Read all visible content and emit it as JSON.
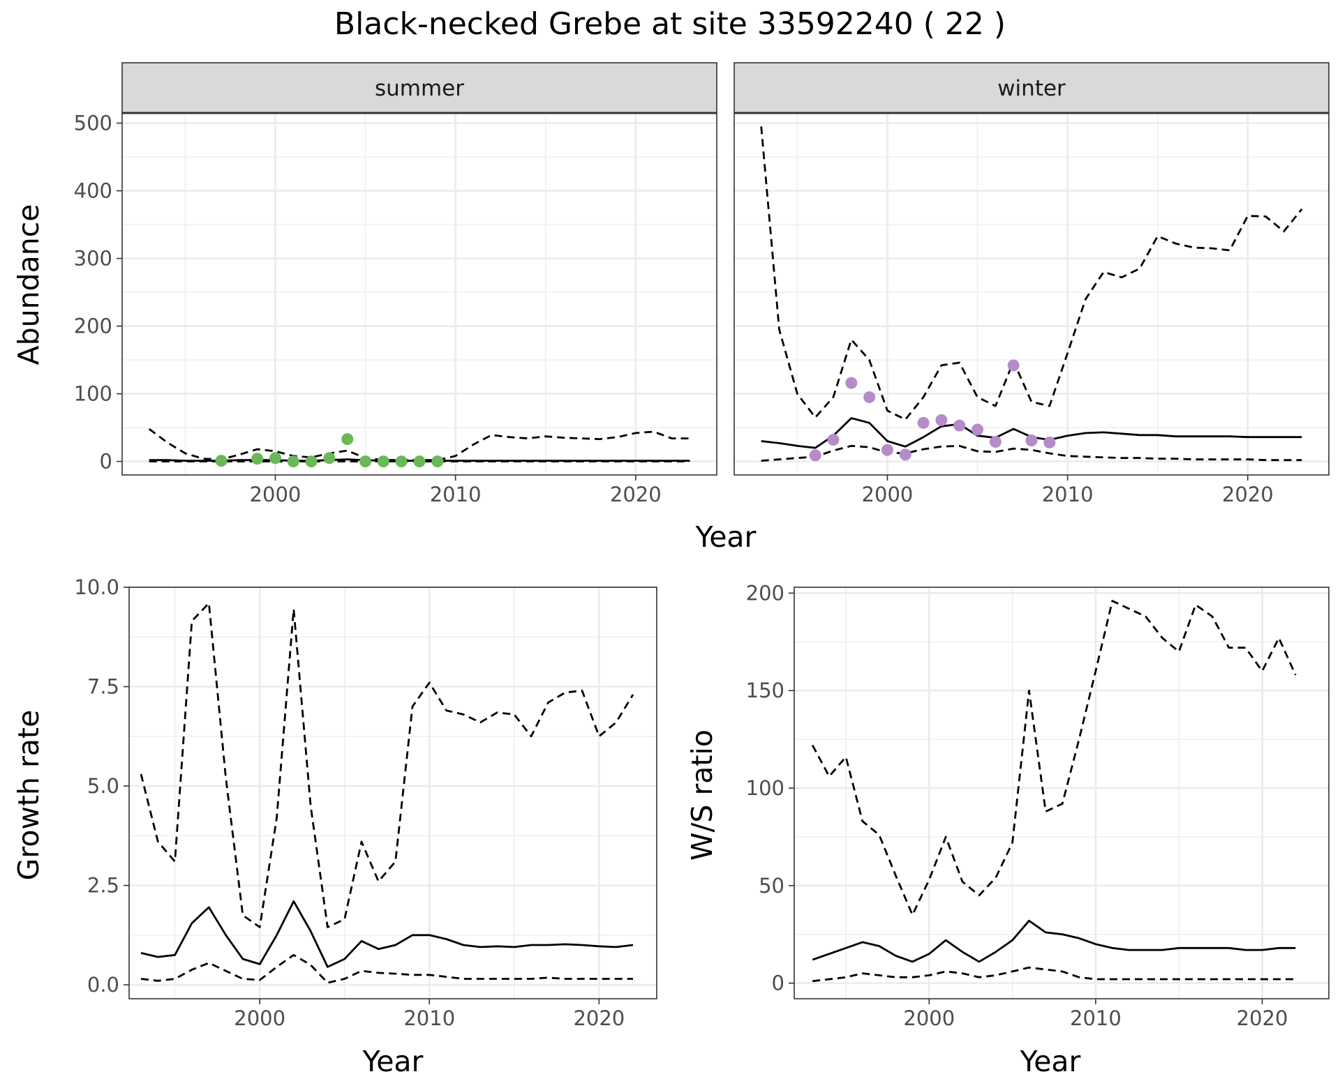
{
  "figure": {
    "title": "Black-necked Grebe at site 33592240 ( 22 )"
  },
  "colors": {
    "summer_points": "#6ab858",
    "winter_points": "#b58bc9",
    "lines": "#000000",
    "strip_fill": "#d9d9d9",
    "grid": "#ebebeb"
  },
  "chart_data": [
    {
      "type": "line",
      "panel": "summer",
      "strip_label": "summer",
      "xlabel": "Year",
      "ylabel": "Abundance",
      "xlim": [
        1991.5,
        2024.5
      ],
      "ylim": [
        -20,
        515
      ],
      "x_ticks": [
        2000,
        2010,
        2020
      ],
      "y_ticks": [
        0,
        100,
        200,
        300,
        400,
        500
      ],
      "grid": true,
      "series": [
        {
          "role": "estimate",
          "linestyle": "solid",
          "x": [
            1993,
            1994,
            1995,
            1996,
            1997,
            1998,
            1999,
            2000,
            2001,
            2002,
            2003,
            2004,
            2005,
            2006,
            2007,
            2008,
            2009,
            2010,
            2011,
            2012,
            2013,
            2014,
            2015,
            2016,
            2017,
            2018,
            2019,
            2020,
            2021,
            2022,
            2023
          ],
          "y": [
            2,
            2,
            1,
            1,
            1,
            2,
            2,
            2,
            1,
            1,
            2,
            3,
            2,
            1,
            1,
            1,
            1,
            1,
            1,
            1,
            1,
            1,
            1,
            1,
            1,
            1,
            1,
            1,
            1,
            1,
            1
          ]
        },
        {
          "role": "upper",
          "linestyle": "dashed",
          "x": [
            1993,
            1994,
            1995,
            1996,
            1997,
            1998,
            1999,
            2000,
            2001,
            2002,
            2003,
            2004,
            2005,
            2006,
            2007,
            2008,
            2009,
            2010,
            2011,
            2012,
            2013,
            2014,
            2015,
            2016,
            2017,
            2018,
            2019,
            2020,
            2021,
            2022,
            2023
          ],
          "y": [
            48,
            28,
            12,
            4,
            3,
            10,
            18,
            15,
            8,
            6,
            12,
            16,
            5,
            2,
            2,
            2,
            2,
            8,
            25,
            39,
            36,
            34,
            37,
            35,
            34,
            33,
            36,
            42,
            44,
            34,
            34
          ]
        },
        {
          "role": "lower",
          "linestyle": "dashed",
          "x": [
            1993,
            1994,
            1995,
            1996,
            1997,
            1998,
            1999,
            2000,
            2001,
            2002,
            2003,
            2004,
            2005,
            2006,
            2007,
            2008,
            2009,
            2010,
            2011,
            2012,
            2013,
            2014,
            2015,
            2016,
            2017,
            2018,
            2019,
            2020,
            2021,
            2022,
            2023
          ],
          "y": [
            0,
            0,
            0,
            0,
            0,
            0,
            0,
            0,
            0,
            0,
            0,
            0,
            0,
            0,
            0,
            0,
            0,
            0,
            0,
            0,
            0,
            0,
            0,
            0,
            0,
            0,
            0,
            0,
            0,
            0,
            0
          ]
        }
      ],
      "points": {
        "x": [
          1997,
          1999,
          2000,
          2001,
          2002,
          2003,
          2004,
          2005,
          2006,
          2007,
          2008,
          2009
        ],
        "y": [
          1,
          4,
          5,
          0,
          0,
          5,
          33,
          0,
          0,
          0,
          0,
          0
        ]
      }
    },
    {
      "type": "line",
      "panel": "winter",
      "strip_label": "winter",
      "xlabel": "Year",
      "ylabel": "Abundance",
      "xlim": [
        1991.5,
        2024.5
      ],
      "ylim": [
        -20,
        515
      ],
      "x_ticks": [
        2000,
        2010,
        2020
      ],
      "y_ticks": [
        0,
        100,
        200,
        300,
        400,
        500
      ],
      "grid": true,
      "series": [
        {
          "role": "estimate",
          "linestyle": "solid",
          "x": [
            1993,
            1994,
            1995,
            1996,
            1997,
            1998,
            1999,
            2000,
            2001,
            2002,
            2003,
            2004,
            2005,
            2006,
            2007,
            2008,
            2009,
            2010,
            2011,
            2012,
            2013,
            2014,
            2015,
            2016,
            2017,
            2018,
            2019,
            2020,
            2021,
            2022,
            2023
          ],
          "y": [
            30,
            27,
            23,
            20,
            38,
            64,
            57,
            30,
            22,
            36,
            52,
            55,
            38,
            35,
            48,
            36,
            32,
            38,
            42,
            43,
            41,
            39,
            39,
            37,
            37,
            37,
            37,
            36,
            36,
            36,
            36
          ]
        },
        {
          "role": "upper",
          "linestyle": "dashed",
          "x": [
            1993,
            1994,
            1995,
            1996,
            1997,
            1998,
            1999,
            2000,
            2001,
            2002,
            2003,
            2004,
            2005,
            2006,
            2007,
            2008,
            2009,
            2010,
            2011,
            2012,
            2013,
            2014,
            2015,
            2016,
            2017,
            2018,
            2019,
            2020,
            2021,
            2022,
            2023
          ],
          "y": [
            495,
            195,
            100,
            65,
            95,
            180,
            150,
            75,
            62,
            95,
            142,
            146,
            95,
            82,
            148,
            88,
            82,
            160,
            240,
            280,
            272,
            285,
            333,
            322,
            316,
            315,
            312,
            363,
            362,
            340,
            373
          ]
        },
        {
          "role": "lower",
          "linestyle": "dashed",
          "x": [
            1993,
            1994,
            1995,
            1996,
            1997,
            1998,
            1999,
            2000,
            2001,
            2002,
            2003,
            2004,
            2005,
            2006,
            2007,
            2008,
            2009,
            2010,
            2011,
            2012,
            2013,
            2014,
            2015,
            2016,
            2017,
            2018,
            2019,
            2020,
            2021,
            2022,
            2023
          ],
          "y": [
            1,
            3,
            5,
            7,
            16,
            23,
            21,
            13,
            12,
            18,
            22,
            23,
            15,
            14,
            19,
            17,
            12,
            8,
            7,
            6,
            5,
            5,
            4,
            4,
            3,
            3,
            3,
            3,
            2,
            2,
            2
          ]
        }
      ],
      "points": {
        "x": [
          1996,
          1997,
          1998,
          1999,
          2000,
          2001,
          2002,
          2003,
          2004,
          2005,
          2006,
          2007,
          2008,
          2009
        ],
        "y": [
          9,
          32,
          116,
          95,
          17,
          10,
          57,
          61,
          53,
          47,
          29,
          142,
          31,
          28
        ]
      }
    },
    {
      "type": "line",
      "panel": "growth",
      "xlabel": "Year",
      "ylabel": "Growth rate",
      "xlim": [
        1992.3,
        2023.4
      ],
      "ylim": [
        -0.35,
        10.0
      ],
      "x_ticks": [
        2000,
        2010,
        2020
      ],
      "y_ticks": [
        0.0,
        2.5,
        5.0,
        7.5,
        10.0
      ],
      "y_tick_labels": [
        "0.0",
        "2.5",
        "5.0",
        "7.5",
        "10.0"
      ],
      "grid": true,
      "series": [
        {
          "role": "estimate",
          "linestyle": "solid",
          "x": [
            1993,
            1994,
            1995,
            1996,
            1997,
            1998,
            1999,
            2000,
            2001,
            2002,
            2003,
            2004,
            2005,
            2006,
            2007,
            2008,
            2009,
            2010,
            2011,
            2012,
            2013,
            2014,
            2015,
            2016,
            2017,
            2018,
            2019,
            2020,
            2021,
            2022
          ],
          "y": [
            0.8,
            0.7,
            0.75,
            1.55,
            1.95,
            1.25,
            0.65,
            0.52,
            1.25,
            2.1,
            1.35,
            0.45,
            0.65,
            1.1,
            0.9,
            1.0,
            1.25,
            1.25,
            1.15,
            1.0,
            0.95,
            0.97,
            0.95,
            1.0,
            1.0,
            1.02,
            1.0,
            0.97,
            0.95,
            1.0
          ]
        },
        {
          "role": "upper",
          "linestyle": "dashed",
          "x": [
            1993,
            1994,
            1995,
            1996,
            1997,
            1998,
            1999,
            2000,
            2001,
            2002,
            2003,
            2004,
            2005,
            2006,
            2007,
            2008,
            2009,
            2010,
            2011,
            2012,
            2013,
            2014,
            2015,
            2016,
            2017,
            2018,
            2019,
            2020,
            2021,
            2022
          ],
          "y": [
            5.3,
            3.6,
            3.1,
            9.15,
            9.6,
            5.2,
            1.75,
            1.45,
            4.2,
            9.45,
            4.5,
            1.45,
            1.65,
            3.6,
            2.6,
            3.1,
            7.0,
            7.6,
            6.9,
            6.8,
            6.6,
            6.85,
            6.8,
            6.25,
            7.1,
            7.35,
            7.4,
            6.25,
            6.6,
            7.3
          ]
        },
        {
          "role": "lower",
          "linestyle": "dashed",
          "x": [
            1993,
            1994,
            1995,
            1996,
            1997,
            1998,
            1999,
            2000,
            2001,
            2002,
            2003,
            2004,
            2005,
            2006,
            2007,
            2008,
            2009,
            2010,
            2011,
            2012,
            2013,
            2014,
            2015,
            2016,
            2017,
            2018,
            2019,
            2020,
            2021,
            2022
          ],
          "y": [
            0.15,
            0.1,
            0.15,
            0.38,
            0.55,
            0.35,
            0.15,
            0.12,
            0.45,
            0.75,
            0.5,
            0.05,
            0.15,
            0.35,
            0.3,
            0.28,
            0.25,
            0.25,
            0.2,
            0.15,
            0.15,
            0.15,
            0.15,
            0.15,
            0.18,
            0.15,
            0.15,
            0.15,
            0.15,
            0.15
          ]
        }
      ]
    },
    {
      "type": "line",
      "panel": "ws_ratio",
      "xlabel": "Year",
      "ylabel": "W/S ratio",
      "xlim": [
        1991.9,
        2024.0
      ],
      "ylim": [
        -8,
        203
      ],
      "x_ticks": [
        2000,
        2010,
        2020
      ],
      "y_ticks": [
        0,
        50,
        100,
        150,
        200
      ],
      "grid": true,
      "series": [
        {
          "role": "estimate",
          "linestyle": "solid",
          "x": [
            1993,
            1994,
            1995,
            1996,
            1997,
            1998,
            1999,
            2000,
            2001,
            2002,
            2003,
            2004,
            2005,
            2006,
            2007,
            2008,
            2009,
            2010,
            2011,
            2012,
            2013,
            2014,
            2015,
            2016,
            2017,
            2018,
            2019,
            2020,
            2021,
            2022
          ],
          "y": [
            12,
            15,
            18,
            21,
            19,
            14,
            11,
            15,
            22,
            16,
            11,
            16,
            22,
            32,
            26,
            25,
            23,
            20,
            18,
            17,
            17,
            17,
            18,
            18,
            18,
            18,
            17,
            17,
            18,
            18
          ]
        },
        {
          "role": "upper",
          "linestyle": "dashed",
          "x": [
            1993,
            1994,
            1995,
            1996,
            1997,
            1998,
            1999,
            2000,
            2001,
            2002,
            2003,
            2004,
            2005,
            2006,
            2007,
            2008,
            2009,
            2010,
            2011,
            2012,
            2013,
            2014,
            2015,
            2016,
            2017,
            2018,
            2019,
            2020,
            2021,
            2022
          ],
          "y": [
            122,
            106,
            116,
            83,
            76,
            55,
            35,
            53,
            75,
            52,
            45,
            54,
            72,
            150,
            88,
            92,
            125,
            160,
            196,
            192,
            188,
            177,
            170,
            194,
            188,
            172,
            172,
            160,
            177,
            158
          ]
        },
        {
          "role": "lower",
          "linestyle": "dashed",
          "x": [
            1993,
            1994,
            1995,
            1996,
            1997,
            1998,
            1999,
            2000,
            2001,
            2002,
            2003,
            2004,
            2005,
            2006,
            2007,
            2008,
            2009,
            2010,
            2011,
            2012,
            2013,
            2014,
            2015,
            2016,
            2017,
            2018,
            2019,
            2020,
            2021,
            2022
          ],
          "y": [
            1,
            2,
            3,
            5,
            4,
            3,
            3,
            4,
            6,
            5,
            3,
            4,
            6,
            8,
            7,
            6,
            3,
            2,
            2,
            2,
            2,
            2,
            2,
            2,
            2,
            2,
            2,
            2,
            2,
            2
          ]
        }
      ]
    }
  ]
}
